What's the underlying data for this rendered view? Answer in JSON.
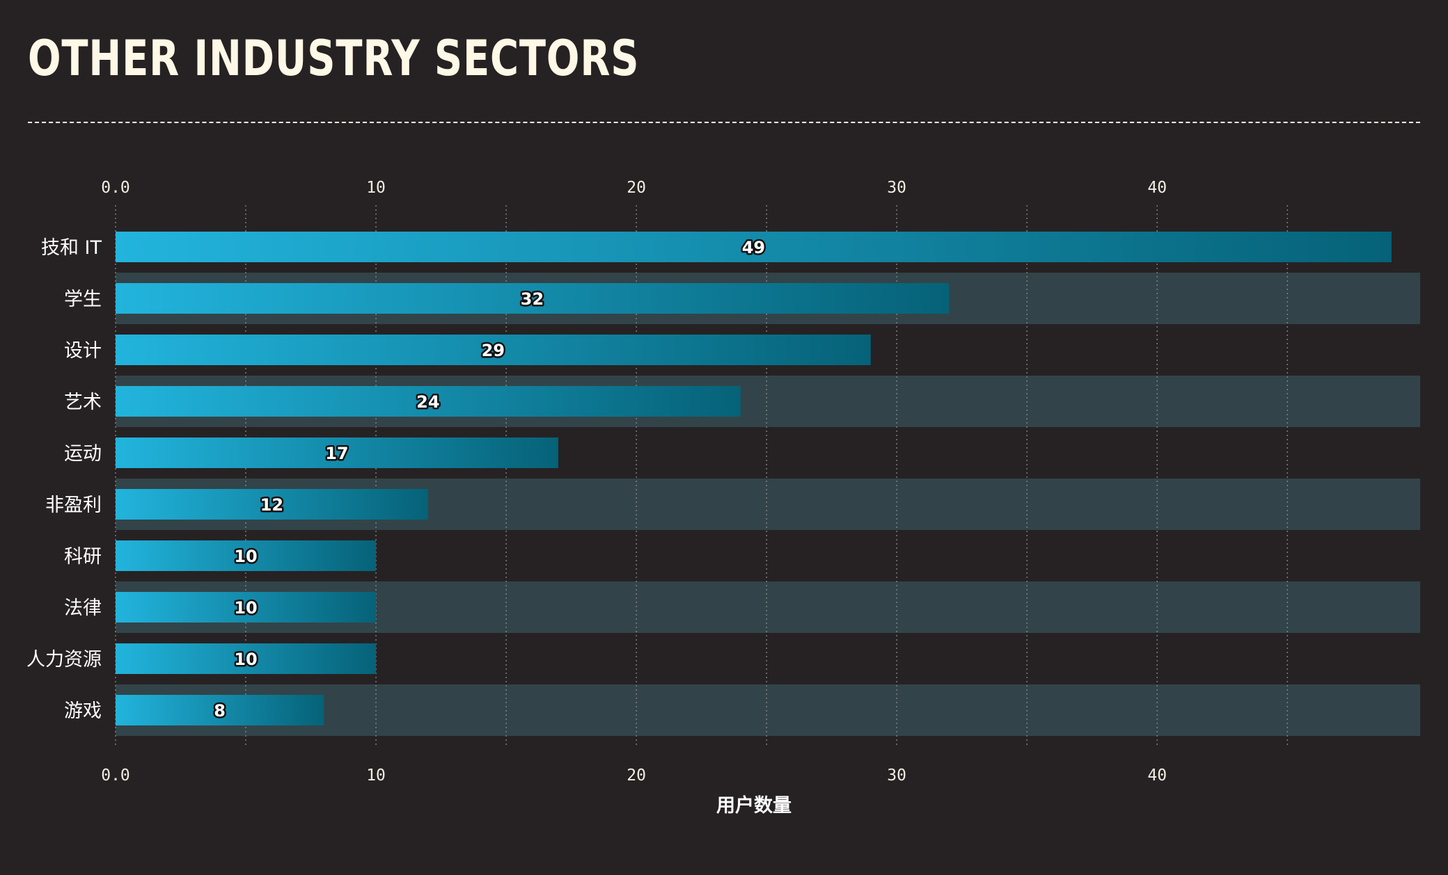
{
  "chart_data": {
    "type": "bar",
    "orientation": "horizontal",
    "title": "OTHER INDUSTRY SECTORS",
    "xlabel": "用户数量",
    "ylabel": "",
    "categories": [
      "技和 IT",
      "学生",
      "设计",
      "艺术",
      "运动",
      "非盈利",
      "科研",
      "法律",
      "人力资源",
      "游戏"
    ],
    "values": [
      49,
      32,
      29,
      24,
      17,
      12,
      10,
      10,
      10,
      8
    ],
    "xlim": [
      0,
      50.1
    ],
    "xticks": [
      "0.0",
      "10",
      "20",
      "30",
      "40"
    ],
    "xtick_values": [
      0,
      10,
      20,
      30,
      40
    ],
    "minor_gridlines": [
      5,
      15,
      25,
      35,
      45
    ],
    "grid": true,
    "tick_labels_top_and_bottom": true,
    "alternating_row_bands": true,
    "colors": {
      "background": "#262223",
      "row_band": "#324449",
      "bar_start": "#22B4DD",
      "bar_end": "#066278",
      "title": "#FFF8E7",
      "text": "#F2EDE3",
      "grid": "#8A8A8A"
    }
  }
}
